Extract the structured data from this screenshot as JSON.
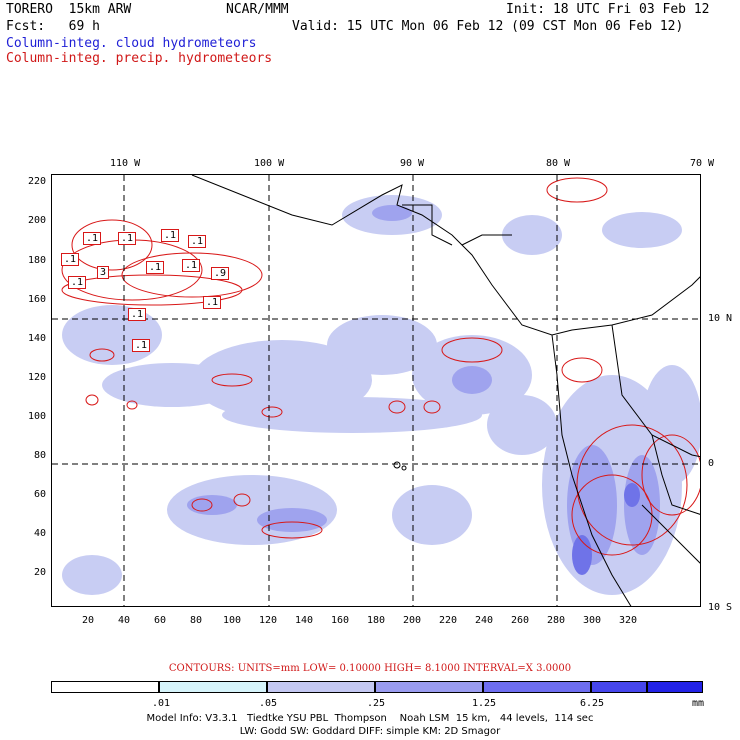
{
  "header": {
    "model": "TORERO  15km ARW",
    "org": "NCAR/MMM",
    "init": "Init: 18 UTC Fri 03 Feb 12",
    "fcst": "Fcst:   69 h",
    "valid": "Valid: 15 UTC Mon 06 Feb 12 (09 CST Mon 06 Feb 12)",
    "field_blue": "Column-integ. cloud hydrometeors",
    "field_red": "Column-integ. precip. hydrometeors"
  },
  "axes": {
    "top_lon": [
      "110 W",
      "100 W",
      "90 W",
      "80 W",
      "70 W"
    ],
    "right_lat": [
      "10 N",
      "0",
      "10 S"
    ],
    "left_y": [
      "220",
      "200",
      "180",
      "160",
      "140",
      "120",
      "100",
      "80",
      "60",
      "40",
      "20"
    ],
    "bottom_x": [
      "20",
      "40",
      "60",
      "80",
      "100",
      "120",
      "140",
      "160",
      "180",
      "200",
      "220",
      "240",
      "260",
      "280",
      "300",
      "320"
    ]
  },
  "contour_labels": [
    ".1",
    ".1",
    ".1",
    ".1",
    ".1",
    ".1",
    ".1",
    "3",
    ".1",
    ".9",
    ".1",
    ".1",
    ".1"
  ],
  "contour_info": "CONTOURS:  UNITS=mm  LOW= 0.10000     HIGH=  8.1000     INTERVAL=X  3.0000",
  "colorbar": {
    "labels": [
      ".01",
      ".05",
      ".25",
      "1.25",
      "6.25"
    ],
    "units": "mm",
    "colors": [
      "#ffffff",
      "#d6f4fb",
      "#c4c8f2",
      "#9a9cf0",
      "#6e6ef0",
      "#4646ec",
      "#2222e6"
    ]
  },
  "model_info": {
    "line1": "Model Info: V3.3.1   Tiedtke YSU PBL  Thompson    Noah LSM  15 km,   44 levels,  114 sec",
    "line2": "LW: Godd SW: Goddard DIFF: simple KM: 2D Smagor"
  },
  "colors": {
    "cloud_light": "#c8cdf3",
    "cloud_mid": "#9fa3ee",
    "cloud_dark": "#6f73e8",
    "precip": "#d81818",
    "land": "#000000"
  }
}
